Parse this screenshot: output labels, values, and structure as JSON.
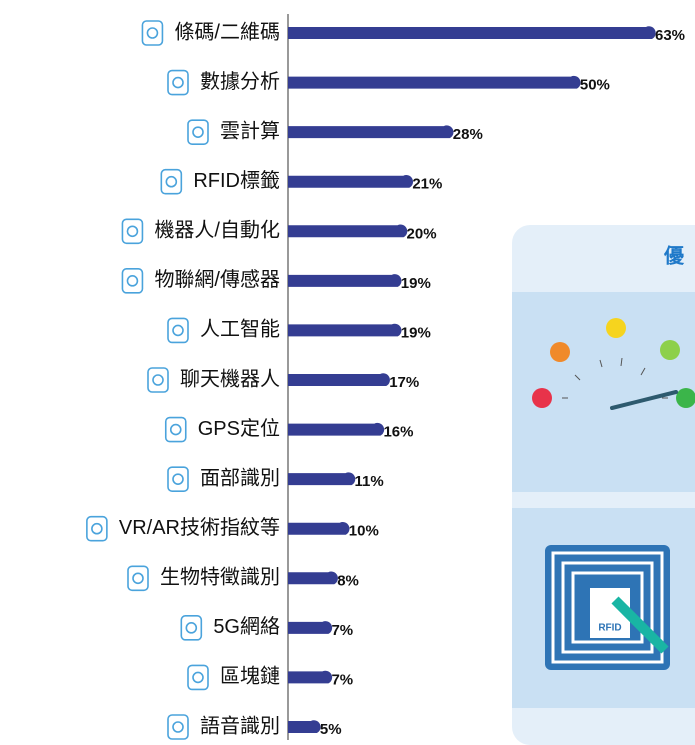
{
  "chart_data": {
    "type": "hbar",
    "categories": [
      "條碼/二維碼",
      "數據分析",
      "雲計算",
      "RFID標籤",
      "機器人/自動化",
      "物聯網/傳感器",
      "人工智能",
      "聊天機器人",
      "GPS定位",
      "面部識別",
      "VR/AR技術指紋等",
      "生物特徵識別",
      "5G網絡",
      "區塊鏈",
      "語音識別"
    ],
    "values": [
      63,
      50,
      28,
      21,
      20,
      19,
      19,
      17,
      16,
      11,
      10,
      8,
      7,
      7,
      5
    ],
    "value_labels": [
      "63%",
      "50%",
      "28%",
      "21%",
      "20%",
      "19%",
      "19%",
      "17%",
      "16%",
      "11%",
      "10%",
      "8%",
      "7%",
      "7%",
      "5%"
    ],
    "color": "#343d92"
  },
  "panel": {
    "title": "優",
    "tag_text": "RFID"
  }
}
